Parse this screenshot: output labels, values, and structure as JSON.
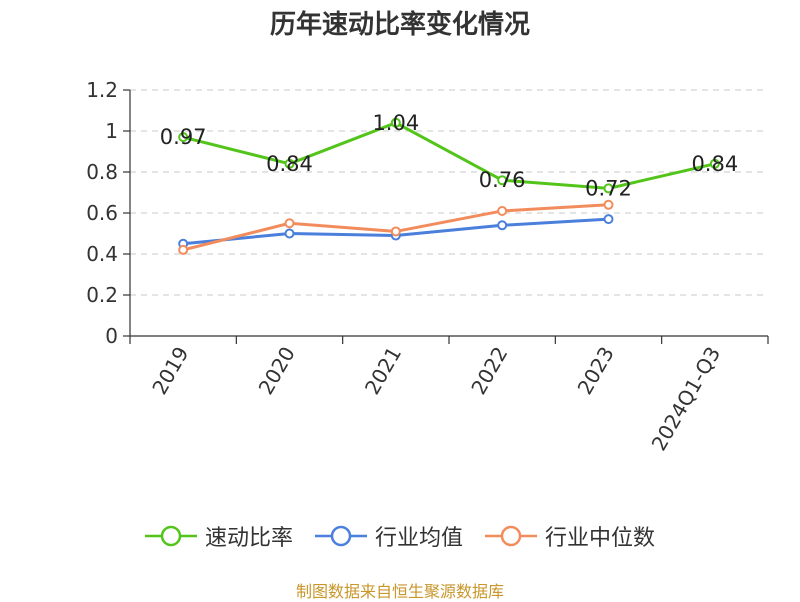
{
  "title": "历年速动比率变化情况",
  "source": "制图数据来自恒生聚源数据库",
  "chart_data": {
    "type": "line",
    "categories": [
      "2019",
      "2020",
      "2021",
      "2022",
      "2023",
      "2024Q1-Q3"
    ],
    "y_ticks": [
      "0",
      "0.2",
      "0.4",
      "0.6",
      "0.8",
      "1",
      "1.2"
    ],
    "ylim": [
      0,
      1.2
    ],
    "grid": true,
    "legend_position": "bottom",
    "series": [
      {
        "name": "速动比率",
        "color": "#52c41a",
        "values": [
          0.97,
          0.84,
          1.04,
          0.76,
          0.72,
          0.84
        ],
        "labels": [
          "0.97",
          "0.84",
          "1.04",
          "0.76",
          "0.72",
          "0.84"
        ]
      },
      {
        "name": "行业均值",
        "color": "#4a7fdb",
        "values": [
          0.45,
          0.5,
          0.49,
          0.54,
          0.57,
          null
        ]
      },
      {
        "name": "行业中位数",
        "color": "#f28c5c",
        "values": [
          0.42,
          0.55,
          0.51,
          0.61,
          0.64,
          null
        ]
      }
    ]
  }
}
